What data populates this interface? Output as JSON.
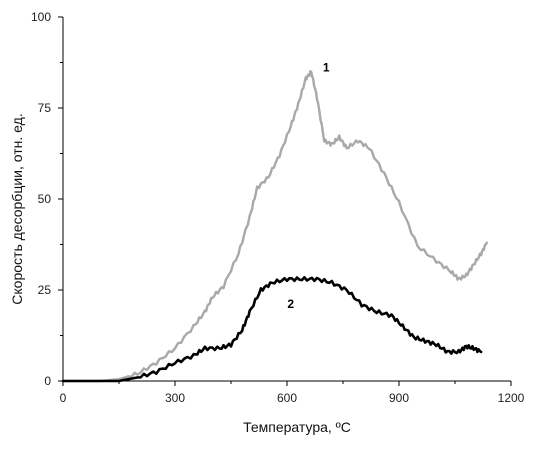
{
  "chart_data": {
    "type": "line",
    "title": "",
    "xlabel": "Температура, ºC",
    "ylabel": "Скорость десорбции, отн. ед.",
    "xlim": [
      0,
      1200
    ],
    "ylim": [
      0,
      100
    ],
    "xticks": [
      0,
      300,
      600,
      900,
      1200
    ],
    "yticks": [
      0,
      25,
      50,
      75,
      100
    ],
    "x_tick_labels": [
      "0",
      "300",
      "600",
      "900",
      "1200"
    ],
    "y_tick_labels": [
      "0",
      "25",
      "50",
      "75",
      "100"
    ],
    "grid": false,
    "legend": "none",
    "series": [
      {
        "name": "1",
        "color": "#a9a9a9",
        "label_at": [
          705,
          85
        ],
        "points": [
          [
            0,
            0
          ],
          [
            100,
            0
          ],
          [
            150,
            0.5
          ],
          [
            200,
            2
          ],
          [
            250,
            5
          ],
          [
            300,
            9
          ],
          [
            350,
            15
          ],
          [
            380,
            19
          ],
          [
            400,
            23
          ],
          [
            430,
            26
          ],
          [
            470,
            35
          ],
          [
            500,
            45
          ],
          [
            520,
            53
          ],
          [
            550,
            56
          ],
          [
            580,
            62
          ],
          [
            610,
            70
          ],
          [
            630,
            76
          ],
          [
            650,
            83
          ],
          [
            665,
            85
          ],
          [
            680,
            78
          ],
          [
            700,
            66
          ],
          [
            720,
            65
          ],
          [
            740,
            67
          ],
          [
            760,
            64
          ],
          [
            790,
            66
          ],
          [
            820,
            64
          ],
          [
            860,
            57
          ],
          [
            900,
            49
          ],
          [
            950,
            37
          ],
          [
            1000,
            33
          ],
          [
            1040,
            30
          ],
          [
            1060,
            28
          ],
          [
            1080,
            29
          ],
          [
            1100,
            32
          ],
          [
            1120,
            35
          ],
          [
            1135,
            38
          ]
        ]
      },
      {
        "name": "2",
        "color": "#000000",
        "label_at": [
          610,
          20
        ],
        "points": [
          [
            0,
            0
          ],
          [
            150,
            0
          ],
          [
            200,
            1
          ],
          [
            250,
            2.5
          ],
          [
            300,
            5
          ],
          [
            350,
            7
          ],
          [
            380,
            9
          ],
          [
            420,
            9
          ],
          [
            450,
            10
          ],
          [
            480,
            14
          ],
          [
            500,
            19
          ],
          [
            530,
            25
          ],
          [
            560,
            27
          ],
          [
            600,
            28
          ],
          [
            640,
            28
          ],
          [
            680,
            28
          ],
          [
            720,
            27
          ],
          [
            760,
            25
          ],
          [
            800,
            21
          ],
          [
            840,
            19
          ],
          [
            880,
            18
          ],
          [
            910,
            15
          ],
          [
            940,
            12
          ],
          [
            970,
            11
          ],
          [
            1000,
            10
          ],
          [
            1030,
            8
          ],
          [
            1060,
            8
          ],
          [
            1080,
            9.5
          ],
          [
            1100,
            9
          ],
          [
            1120,
            8
          ]
        ]
      }
    ]
  }
}
